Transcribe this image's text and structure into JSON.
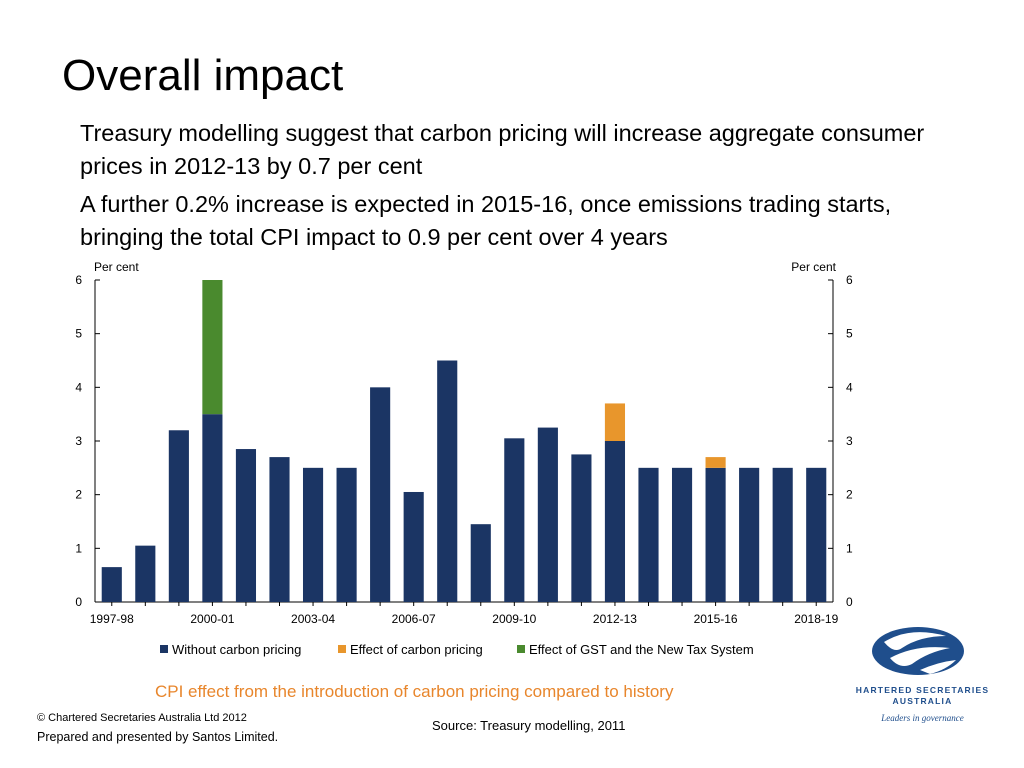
{
  "slide": {
    "title": "Overall impact",
    "paragraphs": [
      "Treasury modelling suggest that carbon pricing will increase aggregate consumer prices in 2012-13 by 0.7 per cent",
      "A further 0.2% increase is expected in 2015-16, once emissions trading starts, bringing the total CPI impact to 0.9 per cent over 4 years"
    ],
    "chart_caption": "CPI effect from the introduction of carbon pricing compared to history",
    "footer": {
      "copyright": "© Chartered Secretaries Australia Ltd 2012",
      "prepared": "Prepared and presented by Santos Limited.",
      "source": "Source: Treasury modelling, 2011"
    },
    "logo": {
      "name_line1": "HARTERED SECRETARIES",
      "name_line2": "AUSTRALIA",
      "tagline": "Leaders in governance",
      "icon": "swirl-globe-icon",
      "color": "#1F4E8C"
    }
  },
  "chart_data": {
    "type": "bar",
    "stacked": true,
    "categories": [
      "1997-98",
      "1998-99",
      "1999-00",
      "2000-01",
      "2001-02",
      "2002-03",
      "2003-04",
      "2004-05",
      "2005-06",
      "2006-07",
      "2007-08",
      "2008-09",
      "2009-10",
      "2010-11",
      "2011-12",
      "2012-13",
      "2013-14",
      "2014-15",
      "2015-16",
      "2016-17",
      "2017-18",
      "2018-19"
    ],
    "tick_labels": [
      "1997-98",
      "2000-01",
      "2003-04",
      "2006-07",
      "2009-10",
      "2012-13",
      "2015-16",
      "2018-19"
    ],
    "series": [
      {
        "name": "Without carbon pricing",
        "color": "#1B3564",
        "values": [
          0.65,
          1.05,
          3.2,
          3.5,
          2.85,
          2.7,
          2.5,
          2.5,
          4.0,
          2.05,
          4.5,
          1.45,
          3.05,
          3.25,
          2.75,
          3.0,
          2.5,
          2.5,
          2.5,
          2.5,
          2.5,
          2.5
        ]
      },
      {
        "name": "Effect of carbon pricing",
        "color": "#E8962C",
        "values": [
          0,
          0,
          0,
          0,
          0,
          0,
          0,
          0,
          0,
          0,
          0,
          0,
          0,
          0,
          0,
          0.7,
          0,
          0,
          0.2,
          0,
          0,
          0
        ]
      },
      {
        "name": "Effect of GST and the New Tax System",
        "color": "#4A8A2E",
        "values": [
          0,
          0,
          0,
          2.5,
          0,
          0,
          0,
          0,
          0,
          0,
          0,
          0,
          0,
          0,
          0,
          0,
          0,
          0,
          0,
          0,
          0,
          0
        ]
      }
    ],
    "ylabel_left": "Per cent",
    "ylabel_right": "Per cent",
    "ylim": [
      0,
      6
    ],
    "yticks": [
      0,
      1,
      2,
      3,
      4,
      5,
      6
    ],
    "grid": false,
    "legend_position": "bottom"
  }
}
